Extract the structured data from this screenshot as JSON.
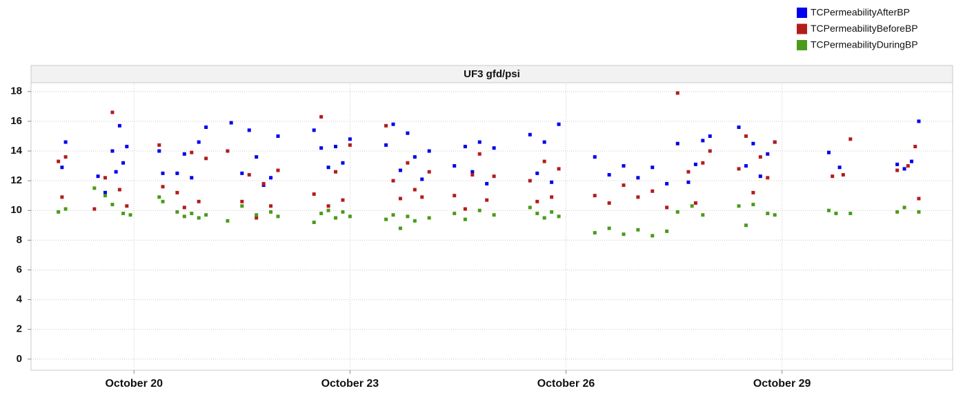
{
  "chart_data": {
    "type": "scatter",
    "title": "UF3 gfd/psi",
    "xlim": [
      18.57,
      31.37
    ],
    "xticks": [
      {
        "value": 20,
        "label": "October 20"
      },
      {
        "value": 23,
        "label": "October 23"
      },
      {
        "value": 26,
        "label": "October 26"
      },
      {
        "value": 29,
        "label": "October 29"
      }
    ],
    "ylim": [
      -0.75,
      18.5
    ],
    "yticks": [
      0,
      2,
      4,
      6,
      8,
      10,
      12,
      14,
      16,
      18
    ],
    "grid": true,
    "legend": "top-right",
    "series": [
      {
        "name": "TCPermeabilityAfterBP",
        "color": "#0000ee",
        "x": [
          19.0,
          19.05,
          19.5,
          19.6,
          19.7,
          19.75,
          19.8,
          19.85,
          19.9,
          20.35,
          20.4,
          20.6,
          20.7,
          20.8,
          20.9,
          21.0,
          21.35,
          21.5,
          21.6,
          21.7,
          21.8,
          21.9,
          22.0,
          22.5,
          22.6,
          22.7,
          22.8,
          22.9,
          23.0,
          23.5,
          23.6,
          23.7,
          23.8,
          23.9,
          24.0,
          24.1,
          24.45,
          24.6,
          24.7,
          24.8,
          24.9,
          25.0,
          25.5,
          25.6,
          25.7,
          25.8,
          25.9,
          26.4,
          26.6,
          26.8,
          27.0,
          27.2,
          27.4,
          27.55,
          27.7,
          27.8,
          27.9,
          28.0,
          28.4,
          28.5,
          28.6,
          28.7,
          28.8,
          28.9,
          29.65,
          29.8,
          30.6,
          30.7,
          30.8,
          30.9
        ],
        "values": [
          12.9,
          14.6,
          12.3,
          11.2,
          14.0,
          12.6,
          15.7,
          13.2,
          14.3,
          14.0,
          12.5,
          12.5,
          13.8,
          12.2,
          14.6,
          15.6,
          15.9,
          12.5,
          15.4,
          13.6,
          11.7,
          12.2,
          15.0,
          15.4,
          14.2,
          12.9,
          14.3,
          13.2,
          14.8,
          14.4,
          15.8,
          12.7,
          15.2,
          13.6,
          12.1,
          14.0,
          13.0,
          14.3,
          12.6,
          14.6,
          11.8,
          14.2,
          15.1,
          12.5,
          14.6,
          11.9,
          15.8,
          13.6,
          12.4,
          13.0,
          12.2,
          12.9,
          11.8,
          14.5,
          11.9,
          13.1,
          14.7,
          15.0,
          15.6,
          13.0,
          14.5,
          12.3,
          13.8,
          14.6,
          13.9,
          12.9,
          13.1,
          12.8,
          13.3,
          16.0
        ]
      },
      {
        "name": "TCPermeabilityBeforeBP",
        "color": "#b41c1c",
        "x": [
          18.95,
          19.05,
          19.0,
          19.45,
          19.6,
          19.7,
          19.8,
          19.9,
          20.35,
          20.4,
          20.6,
          20.7,
          20.8,
          20.9,
          21.0,
          21.3,
          21.5,
          21.6,
          21.7,
          21.8,
          21.9,
          22.0,
          22.5,
          22.6,
          22.7,
          22.8,
          22.9,
          23.0,
          23.5,
          23.6,
          23.7,
          23.8,
          23.9,
          24.0,
          24.1,
          24.45,
          24.6,
          24.7,
          24.8,
          24.9,
          25.0,
          25.5,
          25.6,
          25.7,
          25.8,
          25.9,
          26.4,
          26.6,
          26.8,
          27.0,
          27.2,
          27.4,
          27.55,
          27.7,
          27.8,
          27.9,
          28.0,
          28.4,
          28.5,
          28.6,
          28.7,
          28.8,
          28.9,
          29.7,
          29.85,
          29.95,
          30.6,
          30.75,
          30.85,
          30.9
        ],
        "values": [
          13.3,
          13.6,
          10.9,
          10.1,
          12.2,
          16.6,
          11.4,
          10.3,
          14.4,
          11.6,
          11.2,
          10.2,
          13.9,
          10.6,
          13.5,
          14.0,
          10.6,
          12.4,
          9.5,
          11.8,
          10.3,
          12.7,
          11.1,
          16.3,
          10.3,
          12.6,
          10.7,
          14.4,
          15.7,
          12.0,
          10.8,
          13.2,
          11.4,
          10.9,
          12.6,
          11.0,
          10.1,
          12.4,
          13.8,
          10.7,
          12.3,
          12.0,
          10.6,
          13.3,
          10.9,
          12.8,
          11.0,
          10.5,
          11.7,
          10.9,
          11.3,
          10.2,
          17.9,
          12.6,
          10.5,
          13.2,
          14.0,
          12.8,
          15.0,
          11.2,
          13.6,
          12.2,
          14.6,
          12.3,
          12.4,
          14.8,
          12.7,
          13.0,
          14.3,
          10.8
        ]
      },
      {
        "name": "TCPermeabilityDuringBP",
        "color": "#4c9a1c",
        "x": [
          18.95,
          19.05,
          19.45,
          19.6,
          19.7,
          19.85,
          19.95,
          20.35,
          20.4,
          20.6,
          20.7,
          20.8,
          20.9,
          21.0,
          21.3,
          21.5,
          21.7,
          21.9,
          22.0,
          22.5,
          22.6,
          22.7,
          22.8,
          22.9,
          23.0,
          23.5,
          23.6,
          23.7,
          23.8,
          23.9,
          24.1,
          24.45,
          24.6,
          24.8,
          25.0,
          25.5,
          25.6,
          25.7,
          25.8,
          25.9,
          26.4,
          26.6,
          26.8,
          27.0,
          27.2,
          27.4,
          27.55,
          27.75,
          27.9,
          28.4,
          28.5,
          28.6,
          28.8,
          28.9,
          29.65,
          29.75,
          29.95,
          30.6,
          30.7,
          30.9
        ],
        "values": [
          9.9,
          10.1,
          11.5,
          11.0,
          10.4,
          9.8,
          9.7,
          10.9,
          10.6,
          9.9,
          9.6,
          9.8,
          9.5,
          9.7,
          9.3,
          10.3,
          9.7,
          9.9,
          9.6,
          9.2,
          9.8,
          10.0,
          9.5,
          9.9,
          9.6,
          9.4,
          9.7,
          8.8,
          9.6,
          9.3,
          9.5,
          9.8,
          9.4,
          10.0,
          9.7,
          10.2,
          9.8,
          9.5,
          9.9,
          9.6,
          8.5,
          8.8,
          8.4,
          8.7,
          8.3,
          8.6,
          9.9,
          10.3,
          9.7,
          10.3,
          9.0,
          10.4,
          9.8,
          9.7,
          10.0,
          9.8,
          9.8,
          9.9,
          10.2,
          9.9
        ]
      }
    ]
  }
}
